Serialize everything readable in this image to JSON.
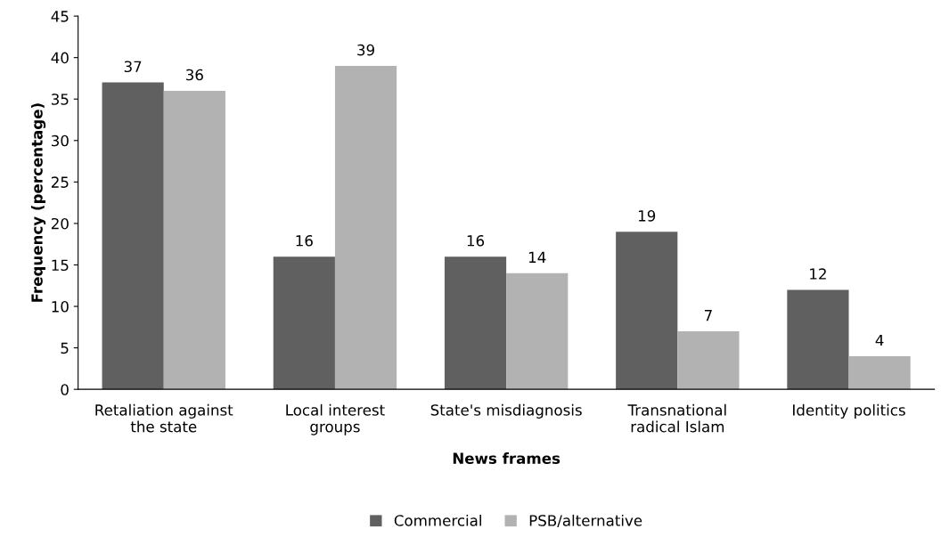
{
  "chart_data": {
    "type": "bar",
    "xlabel": "News frames",
    "ylabel": "Frequency (percentage)",
    "categories": [
      "Retaliation against\nthe state",
      "Local interest\ngroups",
      "State's misdiagnosis",
      "Transnational\nradical Islam",
      "Identity politics"
    ],
    "series": [
      {
        "name": "Commercial",
        "color": "#606060",
        "values": [
          37,
          16,
          16,
          19,
          12
        ]
      },
      {
        "name": "PSB/alternative",
        "color": "#b2b2b2",
        "values": [
          36,
          39,
          14,
          7,
          4
        ]
      }
    ],
    "ylim": [
      0,
      45
    ],
    "yticks": [
      0,
      5,
      10,
      15,
      20,
      25,
      30,
      35,
      40,
      45
    ],
    "data_labels": true,
    "grid": false,
    "legend": "bottom"
  }
}
